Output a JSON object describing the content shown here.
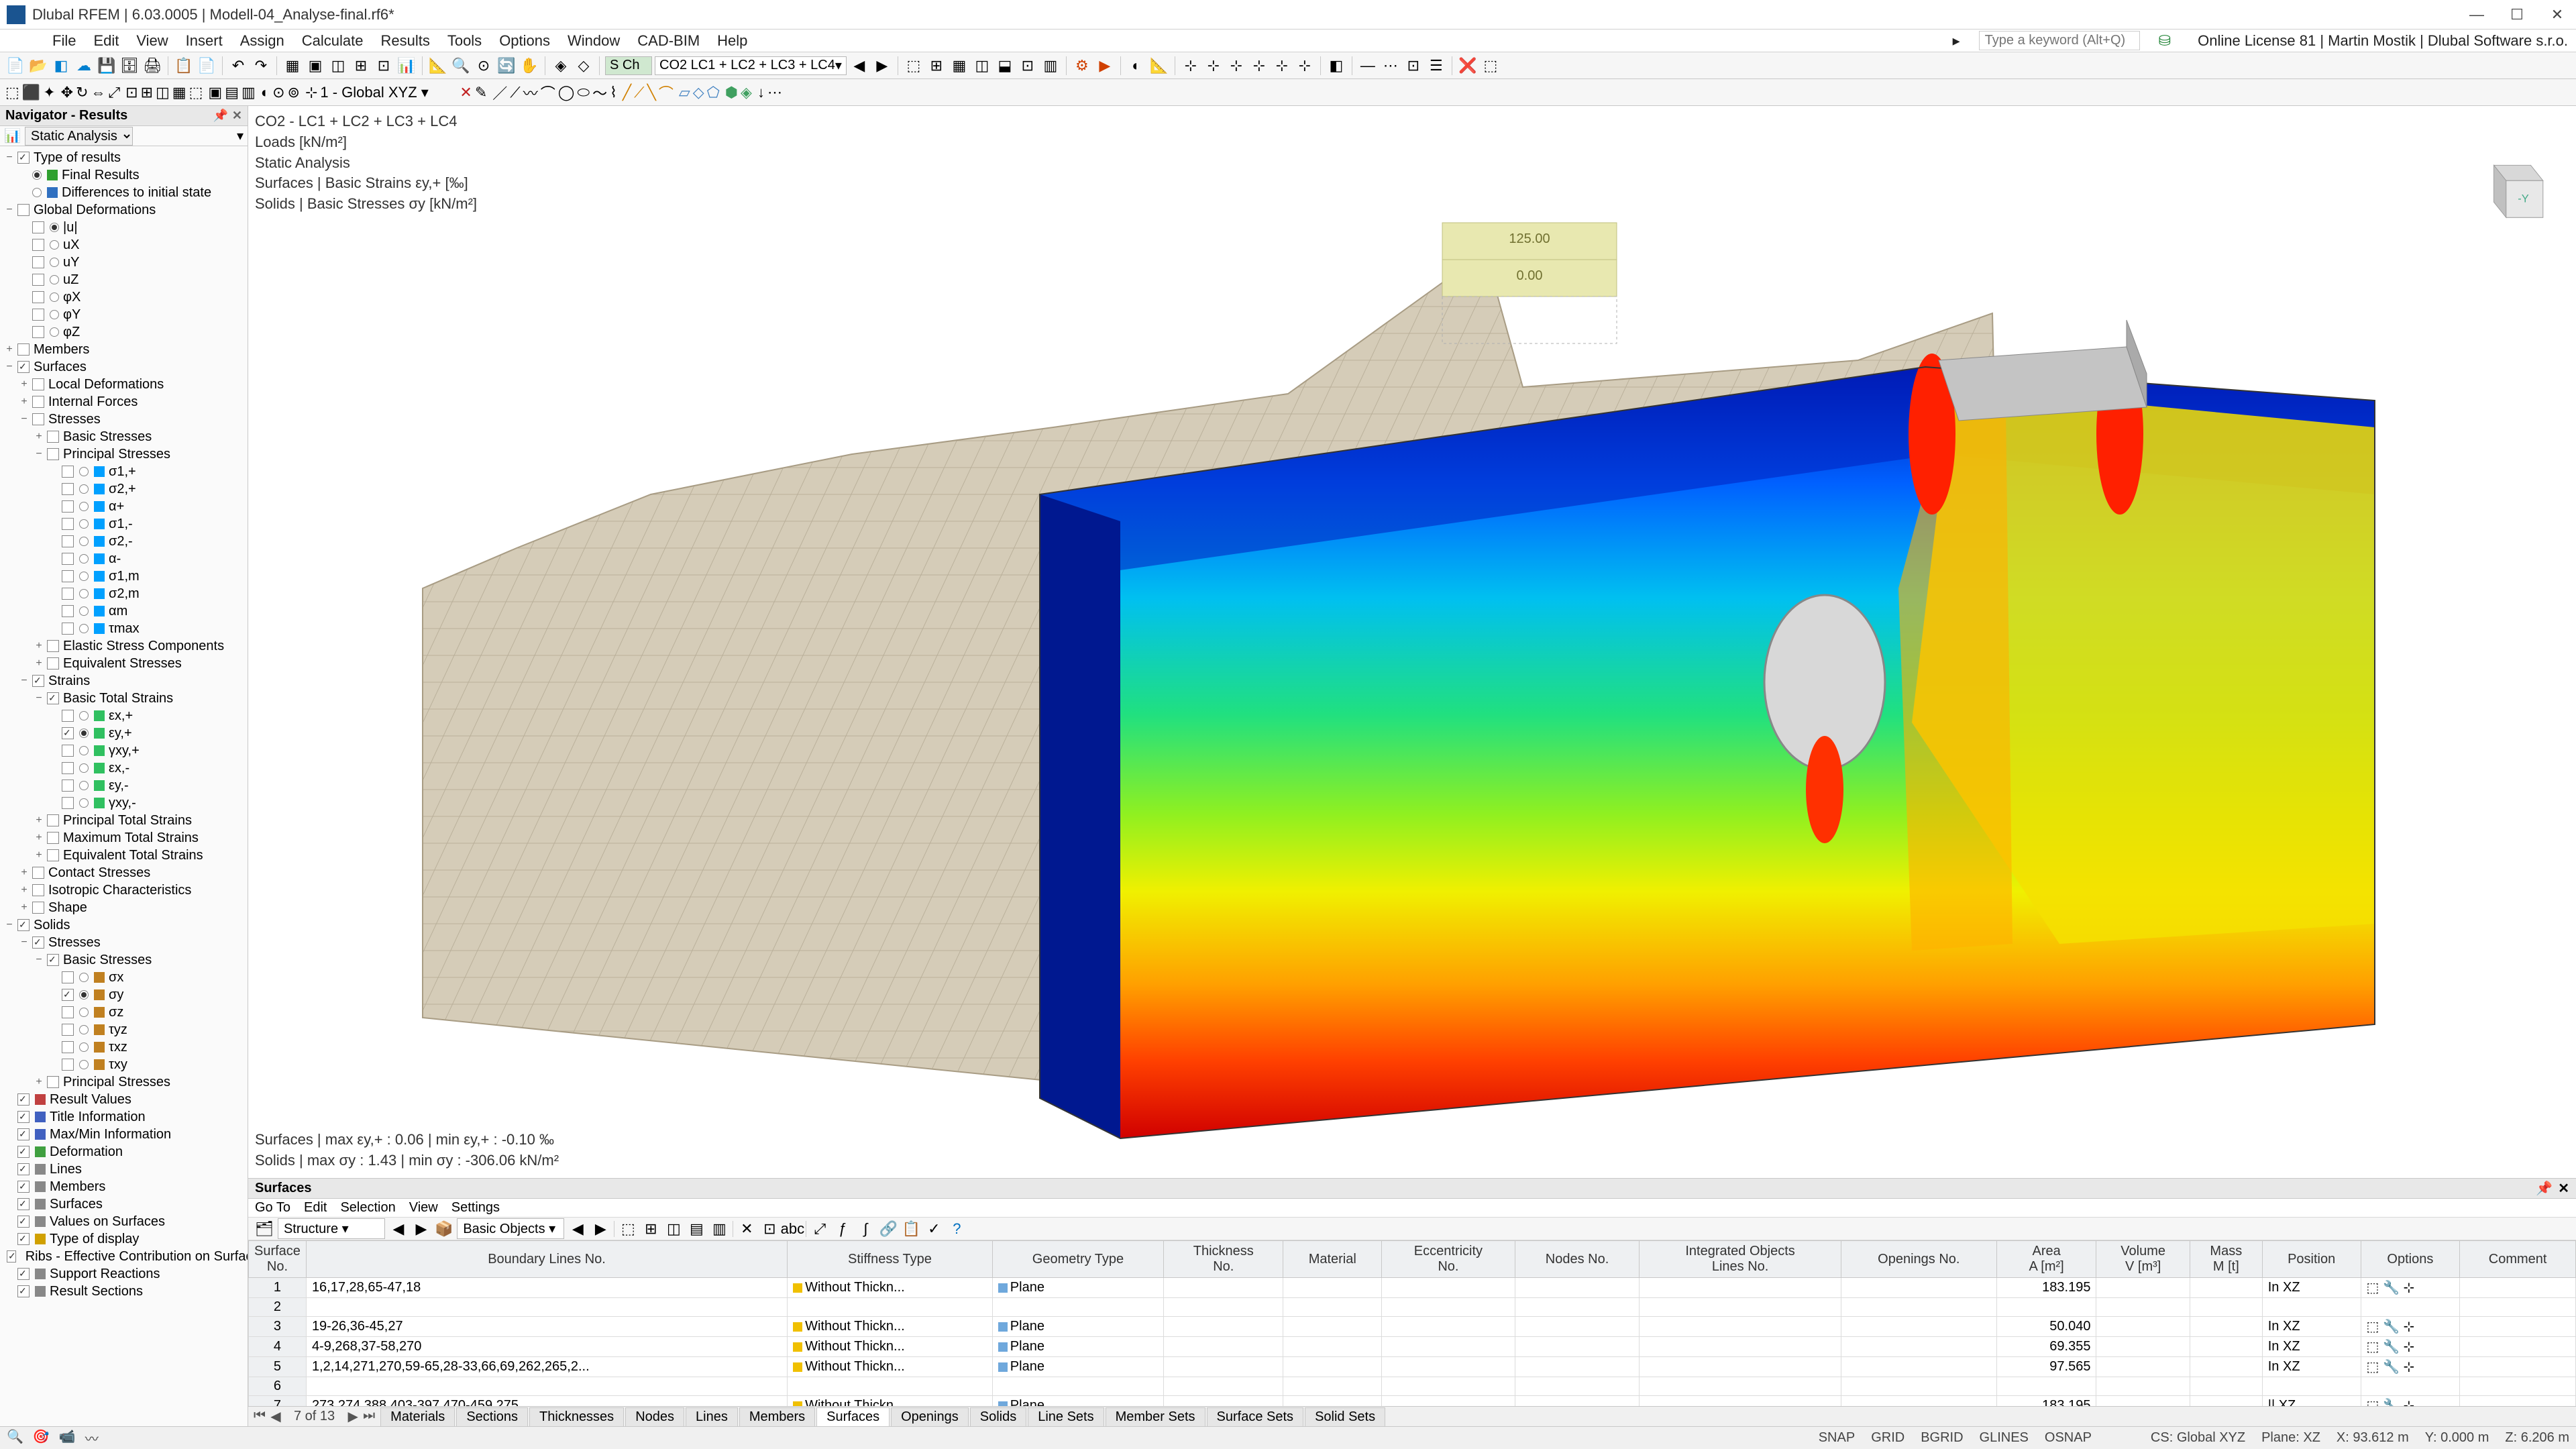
{
  "titlebar": {
    "title": "Dlubal RFEM | 6.03.0005 | Modell-04_Analyse-final.rf6*"
  },
  "menubar": {
    "items": [
      "File",
      "Edit",
      "View",
      "Insert",
      "Assign",
      "Calculate",
      "Results",
      "Tools",
      "Options",
      "Window",
      "CAD-BIM",
      "Help"
    ],
    "search_placeholder": "Type a keyword (Alt+Q)",
    "license": "Online License 81 | Martin Mostik | Dlubal Software s.r.o."
  },
  "toolbar1": {
    "load_combo_label": "S Ch",
    "load_combo": "CO2   LC1 + LC2 + LC3 + LC4"
  },
  "toolbar2": {
    "coord_combo": "1 - Global XYZ"
  },
  "navigator": {
    "title": "Navigator - Results",
    "mode": "Static Analysis"
  },
  "tree": [
    {
      "d": 0,
      "exp": "−",
      "chk": true,
      "lbl": "Type of results"
    },
    {
      "d": 1,
      "rad": true,
      "ico": "#30a030",
      "lbl": "Final Results"
    },
    {
      "d": 1,
      "rad": false,
      "ico": "#3070c0",
      "lbl": "Differences to initial state"
    },
    {
      "d": 0,
      "exp": "−",
      "chk": false,
      "lbl": "Global Deformations"
    },
    {
      "d": 1,
      "rad": true,
      "chk": false,
      "lbl": "|u|"
    },
    {
      "d": 1,
      "rad": false,
      "chk": false,
      "lbl": "uX"
    },
    {
      "d": 1,
      "rad": false,
      "chk": false,
      "lbl": "uY"
    },
    {
      "d": 1,
      "rad": false,
      "chk": false,
      "lbl": "uZ"
    },
    {
      "d": 1,
      "rad": false,
      "chk": false,
      "lbl": "φX"
    },
    {
      "d": 1,
      "rad": false,
      "chk": false,
      "lbl": "φY"
    },
    {
      "d": 1,
      "rad": false,
      "chk": false,
      "lbl": "φZ"
    },
    {
      "d": 0,
      "exp": "+",
      "chk": false,
      "lbl": "Members"
    },
    {
      "d": 0,
      "exp": "−",
      "chk": true,
      "lbl": "Surfaces"
    },
    {
      "d": 1,
      "exp": "+",
      "chk": false,
      "lbl": "Local Deformations"
    },
    {
      "d": 1,
      "exp": "+",
      "chk": false,
      "lbl": "Internal Forces"
    },
    {
      "d": 1,
      "exp": "−",
      "chk": false,
      "lbl": "Stresses"
    },
    {
      "d": 2,
      "exp": "+",
      "chk": false,
      "lbl": "Basic Stresses"
    },
    {
      "d": 2,
      "exp": "−",
      "chk": false,
      "lbl": "Principal Stresses"
    },
    {
      "d": 3,
      "rad": false,
      "chk": false,
      "ico": "#00a0ff",
      "lbl": "σ1,+"
    },
    {
      "d": 3,
      "rad": false,
      "chk": false,
      "ico": "#00a0ff",
      "lbl": "σ2,+"
    },
    {
      "d": 3,
      "rad": false,
      "chk": false,
      "ico": "#00a0ff",
      "lbl": "α+"
    },
    {
      "d": 3,
      "rad": false,
      "chk": false,
      "ico": "#00a0ff",
      "lbl": "σ1,-"
    },
    {
      "d": 3,
      "rad": false,
      "chk": false,
      "ico": "#00a0ff",
      "lbl": "σ2,-"
    },
    {
      "d": 3,
      "rad": false,
      "chk": false,
      "ico": "#00a0ff",
      "lbl": "α-"
    },
    {
      "d": 3,
      "rad": false,
      "chk": false,
      "ico": "#00a0ff",
      "lbl": "σ1,m"
    },
    {
      "d": 3,
      "rad": false,
      "chk": false,
      "ico": "#00a0ff",
      "lbl": "σ2,m"
    },
    {
      "d": 3,
      "rad": false,
      "chk": false,
      "ico": "#00a0ff",
      "lbl": "αm"
    },
    {
      "d": 3,
      "rad": false,
      "chk": false,
      "ico": "#00a0ff",
      "lbl": "τmax"
    },
    {
      "d": 2,
      "exp": "+",
      "chk": false,
      "lbl": "Elastic Stress Components"
    },
    {
      "d": 2,
      "exp": "+",
      "chk": false,
      "lbl": "Equivalent Stresses"
    },
    {
      "d": 1,
      "exp": "−",
      "chk": true,
      "lbl": "Strains"
    },
    {
      "d": 2,
      "exp": "−",
      "chk": true,
      "lbl": "Basic Total Strains"
    },
    {
      "d": 3,
      "rad": false,
      "chk": false,
      "ico": "#30c060",
      "lbl": "εx,+"
    },
    {
      "d": 3,
      "rad": true,
      "chk": true,
      "ico": "#30c060",
      "lbl": "εy,+"
    },
    {
      "d": 3,
      "rad": false,
      "chk": false,
      "ico": "#30c060",
      "lbl": "γxy,+"
    },
    {
      "d": 3,
      "rad": false,
      "chk": false,
      "ico": "#30c060",
      "lbl": "εx,-"
    },
    {
      "d": 3,
      "rad": false,
      "chk": false,
      "ico": "#30c060",
      "lbl": "εy,-"
    },
    {
      "d": 3,
      "rad": false,
      "chk": false,
      "ico": "#30c060",
      "lbl": "γxy,-"
    },
    {
      "d": 2,
      "exp": "+",
      "chk": false,
      "lbl": "Principal Total Strains"
    },
    {
      "d": 2,
      "exp": "+",
      "chk": false,
      "lbl": "Maximum Total Strains"
    },
    {
      "d": 2,
      "exp": "+",
      "chk": false,
      "lbl": "Equivalent Total Strains"
    },
    {
      "d": 1,
      "exp": "+",
      "chk": false,
      "lbl": "Contact Stresses"
    },
    {
      "d": 1,
      "exp": "+",
      "chk": false,
      "lbl": "Isotropic Characteristics"
    },
    {
      "d": 1,
      "exp": "+",
      "chk": false,
      "lbl": "Shape"
    },
    {
      "d": 0,
      "exp": "−",
      "chk": true,
      "lbl": "Solids"
    },
    {
      "d": 1,
      "exp": "−",
      "chk": true,
      "lbl": "Stresses"
    },
    {
      "d": 2,
      "exp": "−",
      "chk": true,
      "lbl": "Basic Stresses"
    },
    {
      "d": 3,
      "rad": false,
      "chk": false,
      "ico": "#c08020",
      "lbl": "σx"
    },
    {
      "d": 3,
      "rad": true,
      "chk": true,
      "ico": "#c08020",
      "lbl": "σy"
    },
    {
      "d": 3,
      "rad": false,
      "chk": false,
      "ico": "#c08020",
      "lbl": "σz"
    },
    {
      "d": 3,
      "rad": false,
      "chk": false,
      "ico": "#c08020",
      "lbl": "τyz"
    },
    {
      "d": 3,
      "rad": false,
      "chk": false,
      "ico": "#c08020",
      "lbl": "τxz"
    },
    {
      "d": 3,
      "rad": false,
      "chk": false,
      "ico": "#c08020",
      "lbl": "τxy"
    },
    {
      "d": 2,
      "exp": "+",
      "chk": false,
      "lbl": "Principal Stresses"
    },
    {
      "d": 0,
      "chk": true,
      "ico": "#c04040",
      "lbl": "Result Values"
    },
    {
      "d": 0,
      "chk": true,
      "ico": "#4060c0",
      "lbl": "Title Information"
    },
    {
      "d": 0,
      "chk": true,
      "ico": "#4060c0",
      "lbl": "Max/Min Information"
    },
    {
      "d": 0,
      "chk": true,
      "ico": "#40a040",
      "lbl": "Deformation"
    },
    {
      "d": 0,
      "chk": true,
      "ico": "#888",
      "lbl": "Lines"
    },
    {
      "d": 0,
      "chk": true,
      "ico": "#888",
      "lbl": "Members"
    },
    {
      "d": 0,
      "chk": true,
      "ico": "#888",
      "lbl": "Surfaces"
    },
    {
      "d": 0,
      "chk": true,
      "ico": "#888",
      "lbl": "Values on Surfaces"
    },
    {
      "d": 0,
      "chk": true,
      "ico": "#d0a000",
      "lbl": "Type of display"
    },
    {
      "d": 0,
      "chk": true,
      "ico": "#4080c0",
      "lbl": "Ribs - Effective Contribution on Surface..."
    },
    {
      "d": 0,
      "chk": true,
      "ico": "#888",
      "lbl": "Support Reactions"
    },
    {
      "d": 0,
      "chk": true,
      "ico": "#888",
      "lbl": "Result Sections"
    }
  ],
  "viewport": {
    "top_lines": [
      "CO2 - LC1 + LC2 + LC3 + LC4",
      "Loads [kN/m²]",
      "Static Analysis",
      "Surfaces | Basic Strains εy,+ [‰]",
      "Solids | Basic Stresses σy [kN/m²]"
    ],
    "bottom_lines": [
      "Surfaces | max εy,+ : 0.06 | min εy,+ : -0.10 ‰",
      "Solids | max σy : 1.43 | min σy : -306.06 kN/m²"
    ],
    "load_value_top": "125.00",
    "load_value_bottom": "0.00",
    "mesh_color": "#d5ccb8",
    "mesh_line": "#b8ae98",
    "gradient_stops": [
      "#0014aa",
      "#0040ff",
      "#0090ff",
      "#00d0e0",
      "#20e080",
      "#90f020",
      "#f0f000",
      "#ffb000",
      "#ff6000",
      "#ff1000",
      "#d00000"
    ]
  },
  "bottom_panel": {
    "title": "Surfaces",
    "menu": [
      "Go To",
      "Edit",
      "Selection",
      "View",
      "Settings"
    ],
    "combo1": "Structure",
    "combo2": "Basic Objects",
    "columns": [
      "Surface\nNo.",
      "Boundary Lines No.",
      "Stiffness Type",
      "Geometry Type",
      "Thickness\nNo.",
      "Material",
      "Eccentricity\nNo.",
      "Nodes No.",
      "Integrated Objects\nLines No.",
      "Openings No.",
      "Area\nA [m²]",
      "Volume\nV [m³]",
      "Mass\nM [t]",
      "Position",
      "Options",
      "Comment"
    ],
    "rows": [
      {
        "no": "1",
        "bl": "16,17,28,65-47,18",
        "st": "Without Thickn...",
        "st_c": "#f0c000",
        "gt": "Plane",
        "gt_c": "#6fa8dc",
        "area": "183.195",
        "pos": "In XZ"
      },
      {
        "no": "2",
        "bl": "",
        "st": "",
        "gt": "",
        "area": "",
        "pos": ""
      },
      {
        "no": "3",
        "bl": "19-26,36-45,27",
        "st": "Without Thickn...",
        "st_c": "#f0c000",
        "gt": "Plane",
        "gt_c": "#6fa8dc",
        "area": "50.040",
        "pos": "In XZ"
      },
      {
        "no": "4",
        "bl": "4-9,268,37-58,270",
        "st": "Without Thickn...",
        "st_c": "#f0c000",
        "gt": "Plane",
        "gt_c": "#6fa8dc",
        "area": "69.355",
        "pos": "In XZ"
      },
      {
        "no": "5",
        "bl": "1,2,14,271,270,59-65,28-33,66,69,262,265,2...",
        "st": "Without Thickn...",
        "st_c": "#f0c000",
        "gt": "Plane",
        "gt_c": "#6fa8dc",
        "area": "97.565",
        "pos": "In XZ"
      },
      {
        "no": "6",
        "bl": "",
        "st": "",
        "gt": "",
        "area": "",
        "pos": ""
      },
      {
        "no": "7",
        "bl": "273,274,388,403-397,470-459,275",
        "st": "Without Thickn...",
        "st_c": "#f0c000",
        "gt": "Plane",
        "gt_c": "#6fa8dc",
        "area": "183.195",
        "pos": "|| XZ"
      }
    ],
    "page": "7 of 13",
    "tabs": [
      "Materials",
      "Sections",
      "Thicknesses",
      "Nodes",
      "Lines",
      "Members",
      "Surfaces",
      "Openings",
      "Solids",
      "Line Sets",
      "Member Sets",
      "Surface Sets",
      "Solid Sets"
    ],
    "active_tab": "Surfaces"
  },
  "statusbar": {
    "snap": [
      "SNAP",
      "GRID",
      "BGRID",
      "GLINES",
      "OSNAP"
    ],
    "cs": "CS: Global XYZ",
    "plane": "Plane: XZ",
    "x": "X: 93.612 m",
    "y": "Y: 0.000 m",
    "z": "Z: 6.206 m"
  }
}
